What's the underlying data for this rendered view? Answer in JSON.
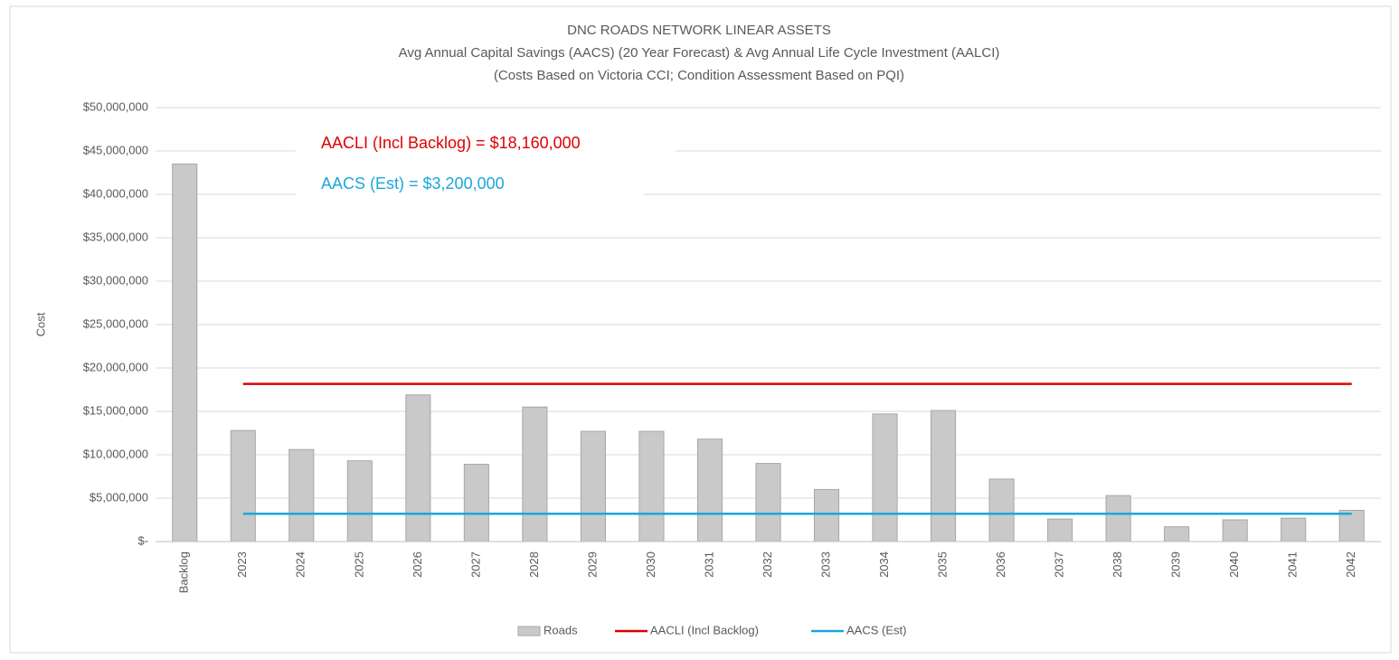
{
  "chart_data": {
    "type": "bar",
    "title": "DNC ROADS NETWORK LINEAR ASSETS",
    "subtitle": [
      "Avg Annual Capital Savings (AACS) (20 Year Forecast) & Avg Annual Life Cycle Investment (AALCI)",
      "(Costs Based on Victoria CCI; Condition Assessment Based on PQI)"
    ],
    "y_label": "Cost",
    "categories": [
      "Backlog",
      "2023",
      "2024",
      "2025",
      "2026",
      "2027",
      "2028",
      "2029",
      "2030",
      "2031",
      "2032",
      "2033",
      "2034",
      "2035",
      "2036",
      "2037",
      "2038",
      "2039",
      "2040",
      "2041",
      "2042"
    ],
    "series": [
      {
        "name": "Roads",
        "type": "bar",
        "color": "#c9c9c9",
        "values": [
          43500000,
          12800000,
          10600000,
          9300000,
          16900000,
          8900000,
          15500000,
          12700000,
          12700000,
          11800000,
          9000000,
          6000000,
          14700000,
          15100000,
          7200000,
          2600000,
          5300000,
          1700000,
          2500000,
          2700000,
          3600000
        ]
      },
      {
        "name": "AACLI (Incl Backlog)",
        "type": "line",
        "color": "#e00000",
        "values": [
          null,
          18160000,
          18160000,
          18160000,
          18160000,
          18160000,
          18160000,
          18160000,
          18160000,
          18160000,
          18160000,
          18160000,
          18160000,
          18160000,
          18160000,
          18160000,
          18160000,
          18160000,
          18160000,
          18160000,
          18160000
        ]
      },
      {
        "name": "AACS (Est)",
        "type": "line",
        "color": "#1aa7dc",
        "values": [
          null,
          3200000,
          3200000,
          3200000,
          3200000,
          3200000,
          3200000,
          3200000,
          3200000,
          3200000,
          3200000,
          3200000,
          3200000,
          3200000,
          3200000,
          3200000,
          3200000,
          3200000,
          3200000,
          3200000,
          3200000
        ]
      }
    ],
    "annotations": [
      {
        "text": "AACLI (Incl Backlog) = $18,160,000",
        "color": "#e00000"
      },
      {
        "text": "AACS (Est) = $3,200,000",
        "color": "#1aa7dc"
      }
    ],
    "ylim": [
      0,
      50000000
    ],
    "yticks": [
      {
        "value": 0,
        "label": "$-"
      },
      {
        "value": 5000000,
        "label": "$5,000,000"
      },
      {
        "value": 10000000,
        "label": "$10,000,000"
      },
      {
        "value": 15000000,
        "label": "$15,000,000"
      },
      {
        "value": 20000000,
        "label": "$20,000,000"
      },
      {
        "value": 25000000,
        "label": "$25,000,000"
      },
      {
        "value": 30000000,
        "label": "$30,000,000"
      },
      {
        "value": 35000000,
        "label": "$35,000,000"
      },
      {
        "value": 40000000,
        "label": "$40,000,000"
      },
      {
        "value": 45000000,
        "label": "$45,000,000"
      },
      {
        "value": 50000000,
        "label": "$50,000,000"
      }
    ],
    "grid": true,
    "legend": "bottom"
  }
}
